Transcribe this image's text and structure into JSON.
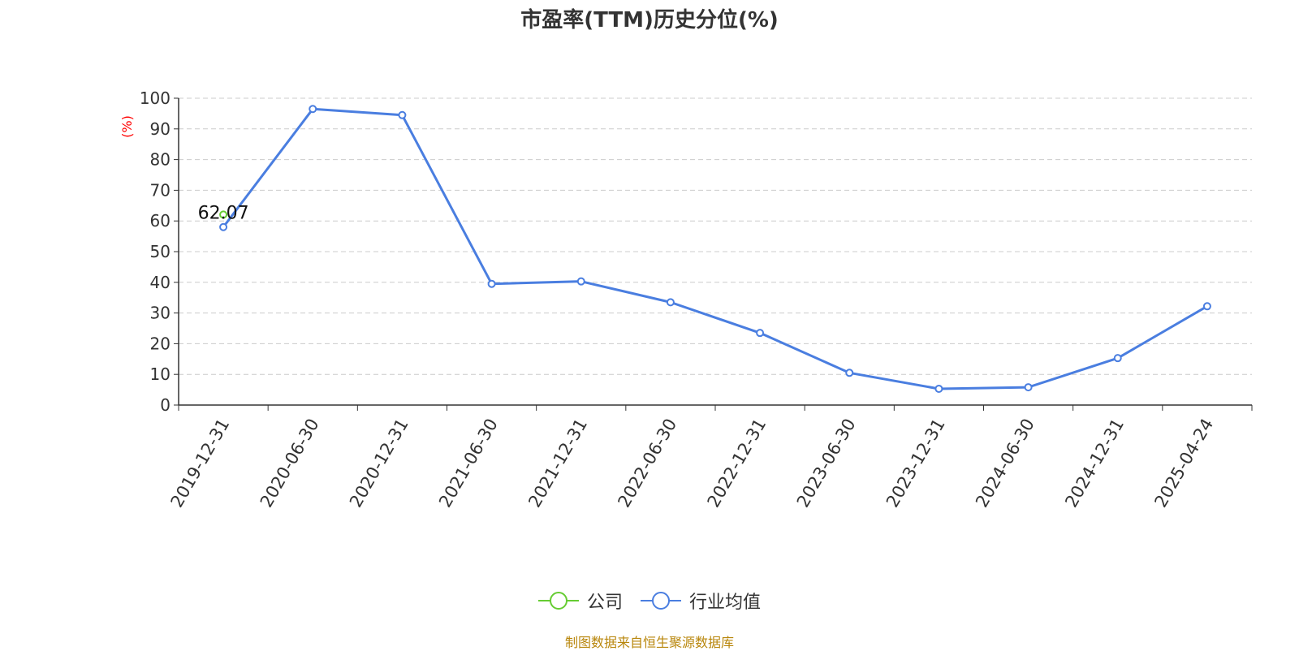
{
  "chart_data": {
    "type": "line",
    "title": "市盈率(TTM)历史分位(%)",
    "ylabel": "(%)",
    "xlabel": "",
    "ylim": [
      0,
      100
    ],
    "yticks": [
      0,
      10,
      20,
      30,
      40,
      50,
      60,
      70,
      80,
      90,
      100
    ],
    "categories": [
      "2019-12-31",
      "2020-06-30",
      "2020-12-31",
      "2021-06-30",
      "2021-12-31",
      "2022-06-30",
      "2022-12-31",
      "2023-06-30",
      "2023-12-31",
      "2024-06-30",
      "2024-12-31",
      "2025-04-24"
    ],
    "grid": true,
    "legend_position": "bottom",
    "series": [
      {
        "name": "公司",
        "color": "#66cc33",
        "values": [
          62.07,
          null,
          null,
          null,
          null,
          null,
          null,
          null,
          null,
          null,
          null,
          null
        ],
        "data_labels": [
          "62.07"
        ]
      },
      {
        "name": "行业均值",
        "color": "#4a7ee0",
        "values": [
          58,
          96.5,
          94.5,
          39.5,
          40.3,
          33.5,
          23.5,
          10.5,
          5.3,
          5.8,
          15.3,
          32.2
        ]
      }
    ]
  },
  "footer": {
    "source": "制图数据来自恒生聚源数据库"
  }
}
